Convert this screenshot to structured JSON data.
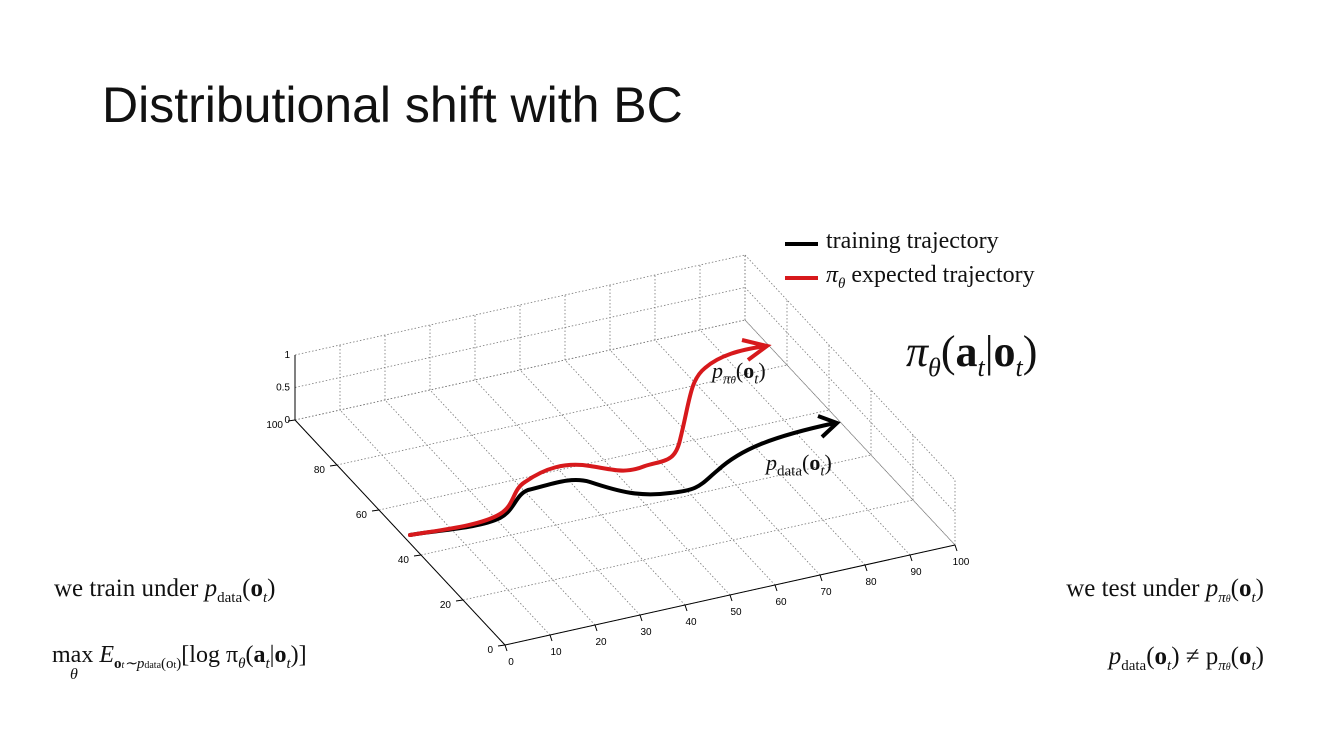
{
  "title": "Distributional shift with BC",
  "legend": {
    "training": [
      "training trajectory"
    ],
    "expected": [
      "π",
      "θ",
      " expected trajectory"
    ]
  },
  "policy_formula": [
    "π",
    "θ",
    "(",
    "a",
    "t",
    "|",
    "o",
    "t",
    ")"
  ],
  "curve_labels": {
    "red": [
      "p",
      "π",
      "θ",
      "(",
      "o",
      "t",
      ")"
    ],
    "black": [
      "p",
      "data",
      "(",
      "o",
      "t",
      ")"
    ]
  },
  "train_label": [
    "we train under ",
    "p",
    "data",
    "(",
    "o",
    "t",
    ")"
  ],
  "objective": [
    "max",
    "θ",
    " E",
    "o",
    "t",
    "∼p",
    "data",
    "(o",
    "t",
    ")",
    "[log π",
    "θ",
    "(",
    "a",
    "t",
    "|",
    "o",
    "t",
    ")]"
  ],
  "test_label": [
    "we test under ",
    "p",
    "π",
    "θ",
    "(",
    "o",
    "t",
    ")"
  ],
  "inequality": [
    "p",
    "data",
    "(",
    "o",
    "t",
    ") ≠ p",
    "π",
    "θ",
    "(",
    "o",
    "t",
    ")"
  ],
  "plot": {
    "x_ticks": [
      0,
      10,
      20,
      30,
      40,
      50,
      60,
      70,
      80,
      90,
      100
    ],
    "y_ticks": [
      0,
      20,
      40,
      60,
      80,
      100
    ],
    "z_ticks": [
      0,
      0.5,
      1
    ]
  }
}
